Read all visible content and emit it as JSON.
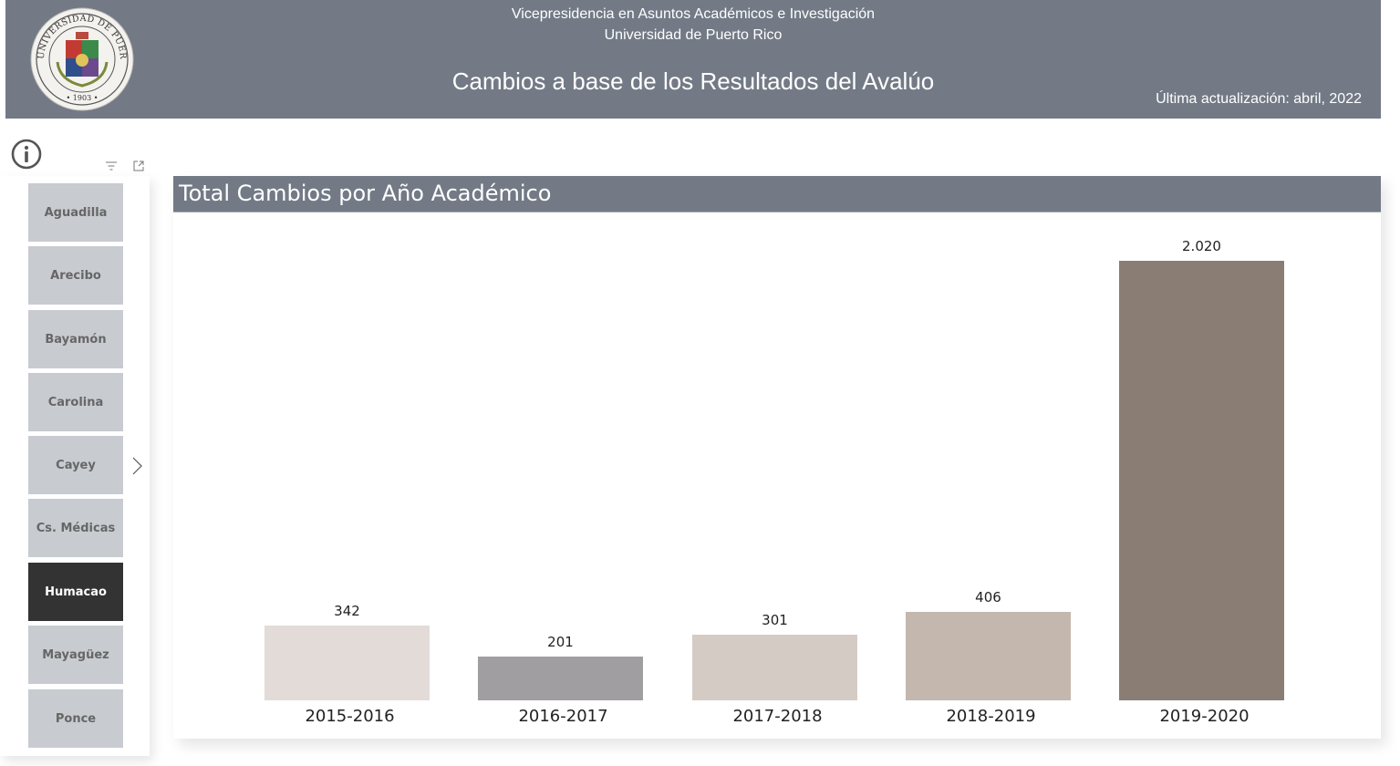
{
  "header": {
    "line1": "Vicepresidencia en Asuntos Académicos e Investigación",
    "line2": "Universidad de Puerto Rico",
    "title": "Cambios a base de los Resultados del Avalúo",
    "updated": "Última actualización: abril, 2022",
    "logo": {
      "outer_text": "UNIVERSIDAD DE PUERTO RICO",
      "year": "1903"
    },
    "background": "#737a86"
  },
  "icons": {
    "info": "info-circle-icon",
    "filter": "filter-icon",
    "focus": "focus-mode-icon",
    "next": "chevron-right-icon"
  },
  "slicer": {
    "items": [
      {
        "label": "Aguadilla",
        "selected": false
      },
      {
        "label": "Arecibo",
        "selected": false
      },
      {
        "label": "Bayamón",
        "selected": false
      },
      {
        "label": "Carolina",
        "selected": false
      },
      {
        "label": "Cayey",
        "selected": false
      },
      {
        "label": "Cs. Médicas",
        "selected": false
      },
      {
        "label": "Humacao",
        "selected": true
      },
      {
        "label": "Mayagüez",
        "selected": false
      },
      {
        "label": "Ponce",
        "selected": false
      }
    ],
    "colors": {
      "item": "#c8cbd0",
      "selected": "#333333"
    }
  },
  "chart": {
    "title": "Total Cambios por Año Académico"
  },
  "chart_data": {
    "type": "bar",
    "title": "Total Cambios por Año Académico",
    "xlabel": "",
    "ylabel": "",
    "categories": [
      "2015-2016",
      "2016-2017",
      "2017-2018",
      "2018-2019",
      "2019-2020"
    ],
    "values": [
      342,
      201,
      301,
      406,
      2020
    ],
    "value_labels": [
      "342",
      "201",
      "301",
      "406",
      "2.020"
    ],
    "colors": [
      "#e3dbd8",
      "#a09ea1",
      "#d4cbc5",
      "#c4b7ae",
      "#8a7d73"
    ],
    "ylim": [
      0,
      2020
    ],
    "grid": false,
    "legend": "none"
  }
}
